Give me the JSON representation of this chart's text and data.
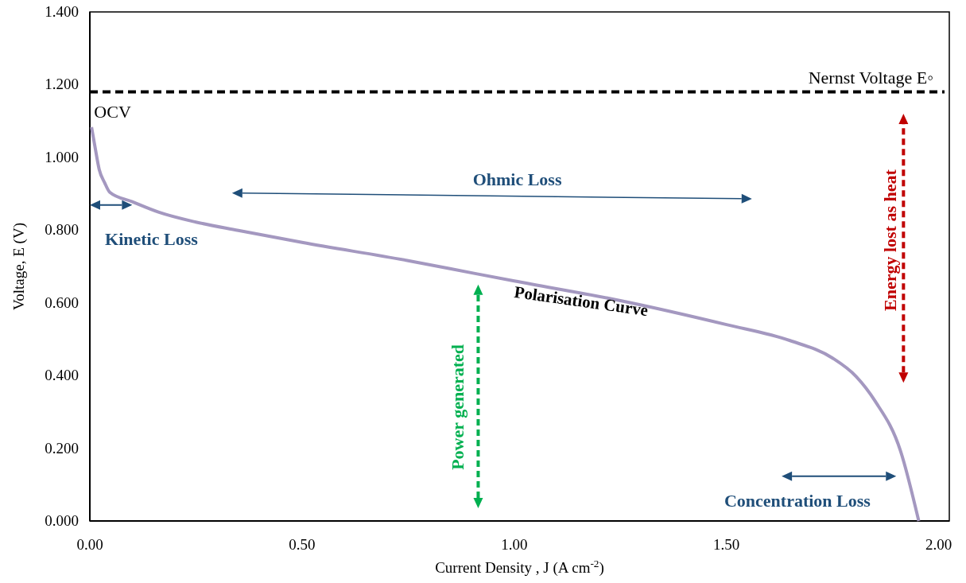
{
  "chart_data": {
    "type": "line",
    "xlabel": "Current Density , J (A cm$^{-2}$)",
    "ylabel": "Voltage, E (V)",
    "xlim": [
      0,
      2.025
    ],
    "ylim": [
      0,
      1.4
    ],
    "xticks": [
      {
        "value": 0,
        "label": "0.00"
      },
      {
        "value": 0.5,
        "label": "0.50"
      },
      {
        "value": 1,
        "label": "1.00"
      },
      {
        "value": 1.5,
        "label": "1.50"
      },
      {
        "value": 2,
        "label": "2.00"
      }
    ],
    "yticks": [
      {
        "value": 0,
        "label": "0.000"
      },
      {
        "value": 0.2,
        "label": "0.200"
      },
      {
        "value": 0.4,
        "label": "0.400"
      },
      {
        "value": 0.6,
        "label": "0.600"
      },
      {
        "value": 0.8,
        "label": "0.800"
      },
      {
        "value": 1,
        "label": "1.000"
      },
      {
        "value": 1.2,
        "label": "1.200"
      },
      {
        "value": 1.4,
        "label": "1.400"
      }
    ],
    "grid": false,
    "marker": "none",
    "line_style": "solid",
    "series": [
      {
        "color": "#a498c0",
        "x": [
          0.004,
          0.012,
          0.022,
          0.035,
          0.047,
          0.1,
          0.163,
          0.25,
          0.35,
          0.5,
          0.75,
          0.91,
          1,
          1.25,
          1.5,
          1.65,
          1.75,
          1.805,
          1.85,
          1.91,
          1.953
        ],
        "values": [
          1.083,
          1.03,
          0.967,
          0.93,
          0.904,
          0.878,
          0.849,
          0.822,
          0.799,
          0.766,
          0.716,
          0.68,
          0.66,
          0.606,
          0.54,
          0.496,
          0.448,
          0.398,
          0.33,
          0.193,
          0
        ]
      }
    ],
    "ref_lines": [
      {
        "axis": "y",
        "value": 1.18,
        "label": "Nernst Voltage E◦",
        "color": "#000000",
        "line_style": "dashed"
      }
    ],
    "annotations": [
      "OCV",
      "Kinetic Loss",
      "Ohmic Loss",
      "Concentration Loss",
      "Polarisation Curve",
      "Power generated",
      "Energy lost as heat"
    ]
  }
}
